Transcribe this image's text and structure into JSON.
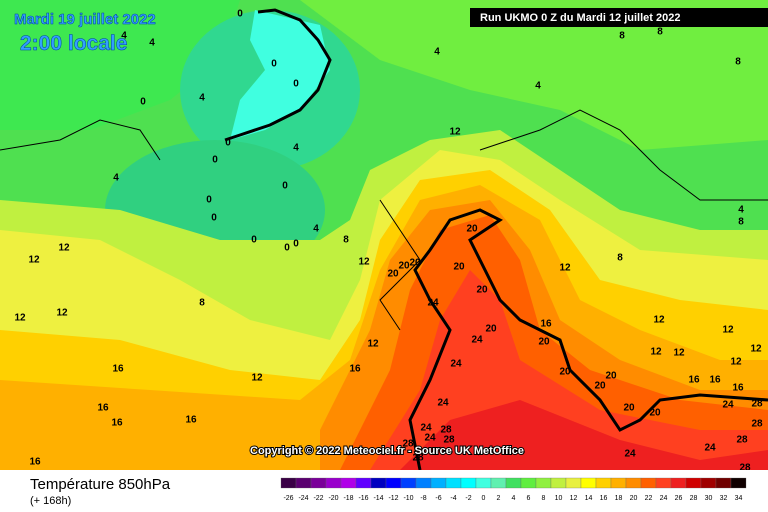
{
  "header": {
    "date": "Mardi 19 juillet 2022",
    "time": "2:00 locale",
    "run": "Run UKMO 0 Z du Mardi 12 juillet 2022"
  },
  "copyright": "Copyright © 2022 Meteociel.fr - Source UK MetOffice",
  "legend": {
    "title": "Température 850hPa",
    "subtitle": "(+ 168h)",
    "scale": [
      -26,
      -24,
      -22,
      -20,
      -18,
      -16,
      -14,
      -12,
      -10,
      -8,
      -6,
      -4,
      -2,
      0,
      2,
      4,
      6,
      8,
      10,
      12,
      14,
      16,
      18,
      20,
      22,
      24,
      26,
      28,
      30,
      32,
      34
    ],
    "colors": [
      "#3a0046",
      "#5a0070",
      "#7a0099",
      "#9900cc",
      "#b000e8",
      "#6000ff",
      "#0000c0",
      "#0000ff",
      "#0040ff",
      "#0080ff",
      "#00b0ff",
      "#00e0ff",
      "#00ffff",
      "#40ffe0",
      "#60f0b0",
      "#40e060",
      "#60ee40",
      "#90f040",
      "#c0f040",
      "#e8f040",
      "#ffff00",
      "#ffd000",
      "#ffb000",
      "#ff8c00",
      "#ff6000",
      "#ff4020",
      "#ee2020",
      "#d00000",
      "#a00000",
      "#700000",
      "#100000"
    ]
  },
  "map_labels": [
    "0",
    "4",
    "4",
    "0",
    "0",
    "4",
    "8",
    "8",
    "8",
    "4",
    "0",
    "4",
    "0",
    "0",
    "12",
    "4",
    "4",
    "0",
    "0",
    "0",
    "4",
    "8",
    "0",
    "0",
    "0",
    "20",
    "4",
    "8",
    "12",
    "12",
    "8",
    "20",
    "20",
    "20",
    "20",
    "12",
    "12",
    "8",
    "24",
    "20",
    "12",
    "12",
    "16",
    "12",
    "12",
    "20",
    "24",
    "12",
    "20",
    "12",
    "12",
    "12",
    "12",
    "24",
    "16",
    "16",
    "12",
    "20",
    "20",
    "20",
    "16",
    "16",
    "16",
    "16",
    "24",
    "20",
    "20",
    "24",
    "28",
    "16",
    "16",
    "24",
    "28",
    "24",
    "28",
    "28",
    "24",
    "28",
    "28",
    "24",
    "28",
    "16",
    "28"
  ]
}
